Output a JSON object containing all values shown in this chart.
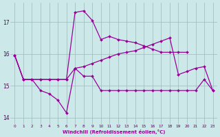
{
  "xlabel": "Windchill (Refroidissement éolien,°C)",
  "background_color": "#cce8e8",
  "line_color": "#990099",
  "xlim": [
    -0.5,
    23.5
  ],
  "ylim": [
    13.8,
    17.6
  ],
  "yticks": [
    14,
    15,
    16,
    17
  ],
  "xticks": [
    0,
    1,
    2,
    3,
    4,
    5,
    6,
    7,
    8,
    9,
    10,
    11,
    12,
    13,
    14,
    15,
    16,
    17,
    18,
    19,
    20,
    21,
    22,
    23
  ],
  "line_top_x": [
    0,
    1,
    2,
    3,
    4,
    5,
    6,
    7,
    8,
    9,
    10,
    11,
    12,
    13,
    14,
    15,
    16,
    17,
    18,
    19,
    20
  ],
  "line_top_y": [
    15.95,
    15.2,
    15.2,
    15.2,
    15.2,
    15.2,
    15.2,
    17.3,
    17.35,
    17.05,
    16.45,
    16.55,
    16.45,
    16.4,
    16.35,
    16.25,
    16.15,
    16.05,
    16.05,
    16.05,
    16.05
  ],
  "line_mid_x": [
    0,
    1,
    2,
    3,
    4,
    5,
    6,
    7,
    8,
    9,
    10,
    11,
    12,
    13,
    14,
    15,
    16,
    17,
    18,
    19,
    20,
    21,
    22,
    23
  ],
  "line_mid_y": [
    15.95,
    15.2,
    15.2,
    15.2,
    15.2,
    15.2,
    15.2,
    15.55,
    15.6,
    15.7,
    15.8,
    15.9,
    16.0,
    16.05,
    16.1,
    16.2,
    16.3,
    16.4,
    16.5,
    15.35,
    15.45,
    15.55,
    15.6,
    14.85
  ],
  "line_bot_x": [
    0,
    1,
    2,
    3,
    4,
    5,
    6,
    7,
    8,
    9,
    10,
    11,
    12,
    13,
    14,
    15,
    16,
    17,
    18,
    19,
    20,
    21,
    22,
    23
  ],
  "line_bot_y": [
    15.95,
    15.2,
    15.2,
    14.85,
    14.75,
    14.55,
    14.15,
    15.55,
    15.3,
    15.3,
    14.85,
    14.85,
    14.85,
    14.85,
    14.85,
    14.85,
    14.85,
    14.85,
    14.85,
    14.85,
    14.85,
    14.85,
    15.2,
    14.85
  ]
}
